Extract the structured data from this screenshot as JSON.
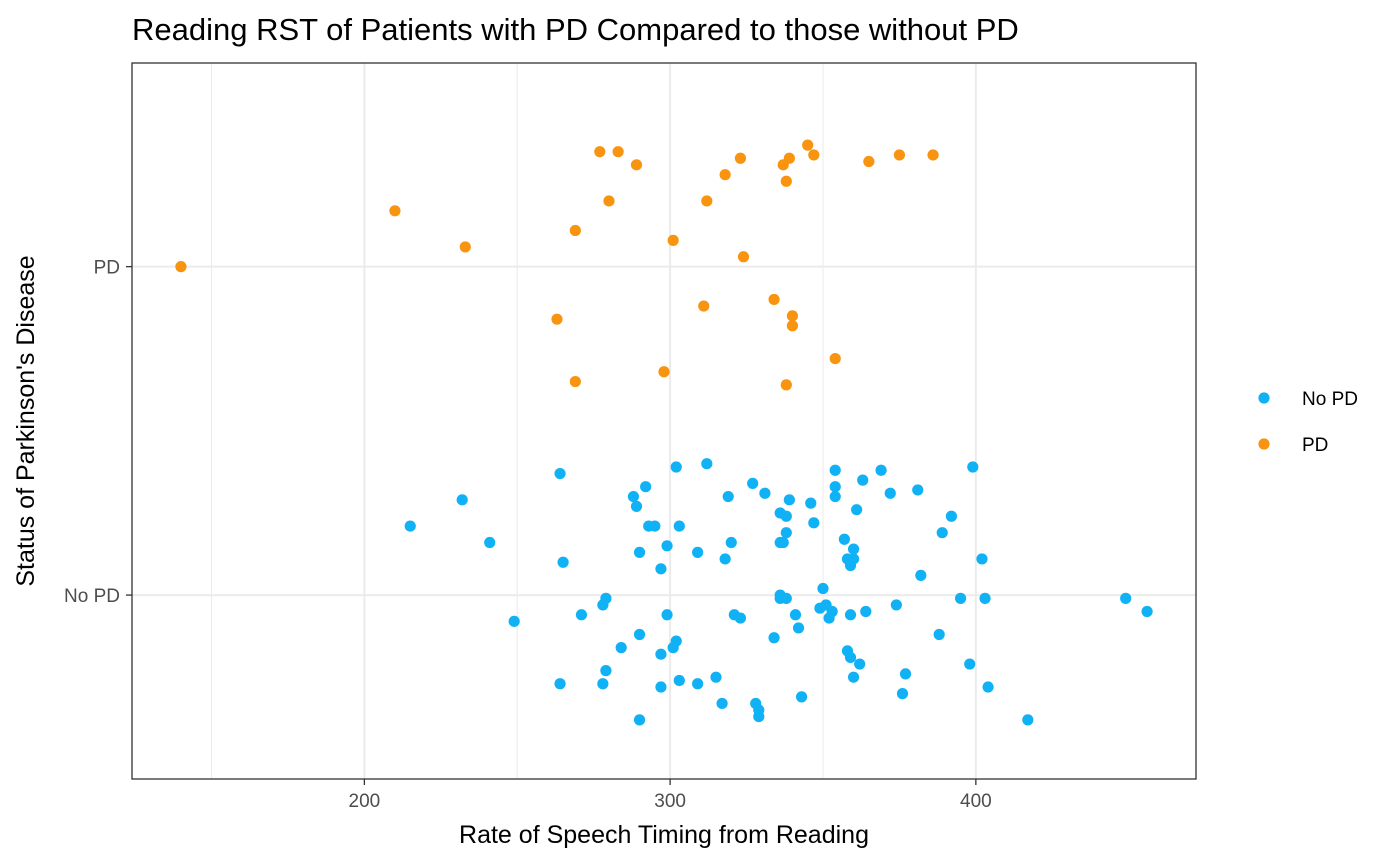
{
  "chart_data": {
    "type": "scatter",
    "title": "Reading RST of Patients with PD Compared to those without PD",
    "xlabel": "Rate of Speech Timing from Reading",
    "ylabel": "Status of Parkinson's Disease",
    "xlim": [
      124,
      472
    ],
    "x_ticks": [
      200,
      300,
      400
    ],
    "x_minor_ticks": [
      150,
      250,
      350
    ],
    "categories": [
      "No PD",
      "PD"
    ],
    "ylim": [
      0.44,
      2.62
    ],
    "grid": true,
    "jitter": "vertical",
    "legend": {
      "position": "right",
      "entries": [
        "No PD",
        "PD"
      ]
    },
    "series": [
      {
        "name": "No PD",
        "color": "#11B2F5",
        "points": [
          [
            215,
            1.21
          ],
          [
            232,
            1.29
          ],
          [
            241,
            1.16
          ],
          [
            249,
            0.92
          ],
          [
            264,
            1.37
          ],
          [
            264,
            0.73
          ],
          [
            265,
            1.1
          ],
          [
            271,
            0.94
          ],
          [
            278,
            0.97
          ],
          [
            278,
            0.73
          ],
          [
            279,
            0.99
          ],
          [
            279,
            0.77
          ],
          [
            284,
            0.84
          ],
          [
            288,
            1.3
          ],
          [
            289,
            1.27
          ],
          [
            290,
            1.13
          ],
          [
            290,
            0.88
          ],
          [
            290,
            0.62
          ],
          [
            292,
            1.33
          ],
          [
            293,
            1.21
          ],
          [
            295,
            1.21
          ],
          [
            297,
            1.08
          ],
          [
            297,
            0.82
          ],
          [
            297,
            0.72
          ],
          [
            299,
            1.15
          ],
          [
            299,
            0.94
          ],
          [
            301,
            0.84
          ],
          [
            302,
            1.39
          ],
          [
            302,
            0.86
          ],
          [
            303,
            1.21
          ],
          [
            303,
            0.74
          ],
          [
            309,
            1.13
          ],
          [
            309,
            0.73
          ],
          [
            312,
            1.4
          ],
          [
            315,
            0.75
          ],
          [
            317,
            0.67
          ],
          [
            318,
            1.11
          ],
          [
            319,
            1.3
          ],
          [
            320,
            1.16
          ],
          [
            321,
            0.94
          ],
          [
            323,
            0.93
          ],
          [
            327,
            1.34
          ],
          [
            328,
            0.67
          ],
          [
            329,
            0.63
          ],
          [
            329,
            0.65
          ],
          [
            331,
            1.31
          ],
          [
            334,
            0.87
          ],
          [
            336,
            1.16
          ],
          [
            336,
            1.25
          ],
          [
            336,
            0.99
          ],
          [
            336,
            1.0
          ],
          [
            337,
            1.16
          ],
          [
            338,
            1.19
          ],
          [
            338,
            1.24
          ],
          [
            338,
            0.99
          ],
          [
            339,
            1.29
          ],
          [
            341,
            0.94
          ],
          [
            342,
            0.9
          ],
          [
            343,
            0.69
          ],
          [
            346,
            1.28
          ],
          [
            347,
            1.22
          ],
          [
            349,
            0.96
          ],
          [
            350,
            1.02
          ],
          [
            351,
            0.97
          ],
          [
            352,
            0.93
          ],
          [
            353,
            0.95
          ],
          [
            354,
            1.38
          ],
          [
            354,
            1.33
          ],
          [
            354,
            1.3
          ],
          [
            357,
            1.17
          ],
          [
            358,
            1.11
          ],
          [
            358,
            0.83
          ],
          [
            359,
            1.09
          ],
          [
            359,
            0.94
          ],
          [
            359,
            0.81
          ],
          [
            360,
            1.14
          ],
          [
            360,
            1.11
          ],
          [
            360,
            0.75
          ],
          [
            361,
            1.26
          ],
          [
            362,
            0.79
          ],
          [
            363,
            1.35
          ],
          [
            364,
            0.95
          ],
          [
            369,
            1.38
          ],
          [
            372,
            1.31
          ],
          [
            374,
            0.97
          ],
          [
            376,
            0.7
          ],
          [
            377,
            0.76
          ],
          [
            381,
            1.32
          ],
          [
            382,
            1.06
          ],
          [
            388,
            0.88
          ],
          [
            389,
            1.19
          ],
          [
            392,
            1.24
          ],
          [
            395,
            0.99
          ],
          [
            398,
            0.79
          ],
          [
            399,
            1.39
          ],
          [
            402,
            1.11
          ],
          [
            403,
            0.99
          ],
          [
            404,
            0.72
          ],
          [
            417,
            0.62
          ],
          [
            449,
            0.99
          ],
          [
            456,
            0.95
          ]
        ]
      },
      {
        "name": "PD",
        "color": "#F8940F",
        "points": [
          [
            140,
            2.0
          ],
          [
            210,
            2.17
          ],
          [
            233,
            2.06
          ],
          [
            263,
            1.84
          ],
          [
            269,
            1.65
          ],
          [
            269,
            2.11
          ],
          [
            277,
            2.35
          ],
          [
            280,
            2.2
          ],
          [
            283,
            2.35
          ],
          [
            289,
            2.31
          ],
          [
            298,
            1.68
          ],
          [
            301,
            2.08
          ],
          [
            311,
            1.88
          ],
          [
            312,
            2.2
          ],
          [
            318,
            2.28
          ],
          [
            323,
            2.33
          ],
          [
            324,
            2.03
          ],
          [
            334,
            1.9
          ],
          [
            337,
            2.31
          ],
          [
            338,
            2.26
          ],
          [
            338,
            1.64
          ],
          [
            339,
            2.33
          ],
          [
            340,
            1.82
          ],
          [
            340,
            1.85
          ],
          [
            345,
            2.37
          ],
          [
            347,
            2.34
          ],
          [
            354,
            1.72
          ],
          [
            365,
            2.32
          ],
          [
            375,
            2.34
          ],
          [
            386,
            2.34
          ]
        ]
      }
    ]
  }
}
